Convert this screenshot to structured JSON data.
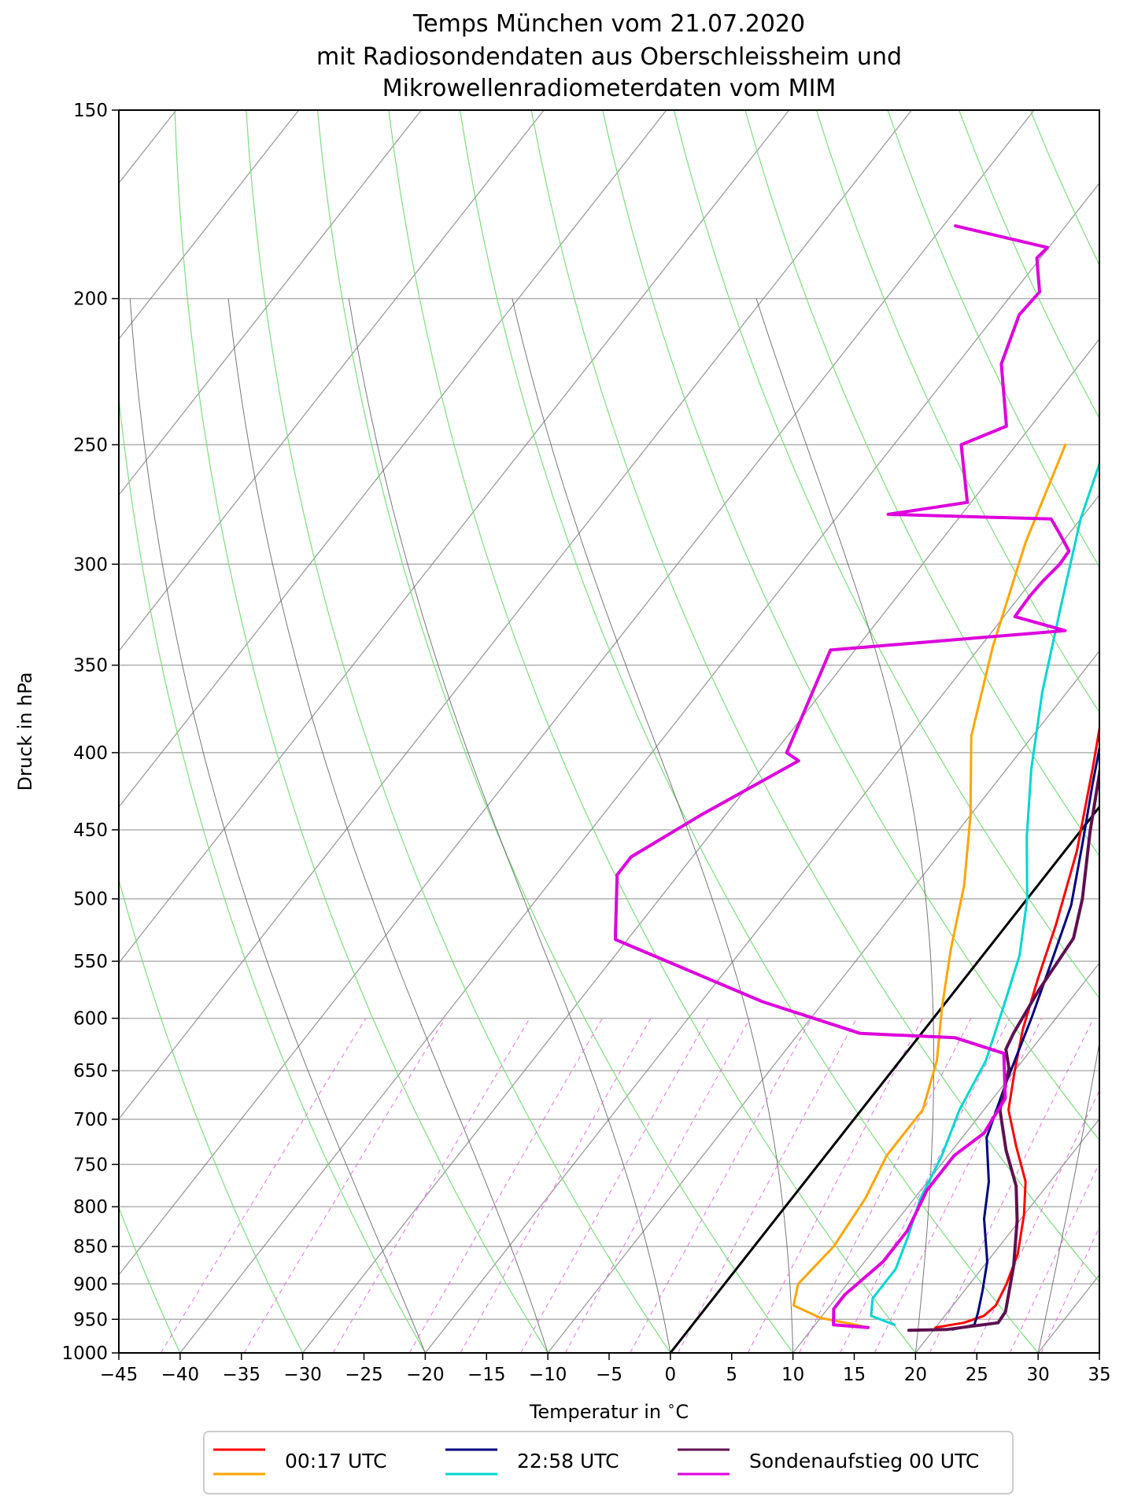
{
  "chart_data": {
    "type": "line",
    "title": "Temps München vom 21.07.2020",
    "subtitle_lines": [
      "mit Radiosondendaten aus Oberschleissheim und",
      "Mikrowellenradiometerdaten vom MIM"
    ],
    "xlabel": "Temperatur in $^\\circ$C",
    "ylabel": "Druck in hPa",
    "xlim": [
      -45,
      35
    ],
    "ylim": [
      1000,
      150
    ],
    "y_scale": "log",
    "skew_t": true,
    "grid": true,
    "x_ticks": [
      -45,
      -40,
      -35,
      -30,
      -25,
      -20,
      -15,
      -10,
      -5,
      0,
      5,
      10,
      15,
      20,
      25,
      30,
      35
    ],
    "x_tick_labels": [
      "−45",
      "−40",
      "−35",
      "−30",
      "−25",
      "−20",
      "−15",
      "−10",
      "−5",
      "0",
      "5",
      "10",
      "15",
      "20",
      "25",
      "30",
      "35"
    ],
    "y_ticks": [
      1000,
      950,
      900,
      850,
      800,
      750,
      700,
      650,
      600,
      550,
      500,
      450,
      400,
      350,
      300,
      250,
      200,
      150
    ],
    "y_tick_labels": [
      "1000",
      "950",
      "900",
      "850",
      "800",
      "750",
      "700",
      "650",
      "600",
      "550",
      "500",
      "450",
      "400",
      "350",
      "300",
      "250",
      "200",
      "150"
    ],
    "legend_position": "bottom",
    "legend": [
      {
        "label": "00:17 UTC",
        "colors": [
          "#ff0000",
          "#ffa500"
        ]
      },
      {
        "label": "22:58 UTC",
        "colors": [
          "#000080",
          "#00d7d0"
        ]
      },
      {
        "label": "Sondenaufstieg 00 UTC",
        "colors": [
          "#5e1050",
          "#dd00dd"
        ]
      }
    ],
    "series": [
      {
        "group": "00:17 UTC",
        "kind": "temperature",
        "color": "#ff0000",
        "width": 3,
        "points": [
          [
            -18.5,
            248
          ],
          [
            -17,
            263
          ],
          [
            -15,
            286
          ],
          [
            -11,
            326
          ],
          [
            -7,
            363
          ],
          [
            -3,
            410
          ],
          [
            1,
            465
          ],
          [
            4,
            520
          ],
          [
            6,
            565
          ],
          [
            8,
            610
          ],
          [
            10,
            650
          ],
          [
            12,
            690
          ],
          [
            15,
            730
          ],
          [
            18,
            770
          ],
          [
            20,
            810
          ],
          [
            22,
            860
          ],
          [
            23,
            900
          ],
          [
            23.5,
            930
          ],
          [
            23.2,
            945
          ],
          [
            22,
            955
          ],
          [
            20,
            962
          ]
        ]
      },
      {
        "group": "00:17 UTC",
        "kind": "dewpoint",
        "color": "#ffa500",
        "width": 3,
        "points": [
          [
            -26,
            250
          ],
          [
            -23,
            290
          ],
          [
            -19,
            340
          ],
          [
            -15,
            390
          ],
          [
            -10,
            440
          ],
          [
            -6,
            490
          ],
          [
            -3,
            540
          ],
          [
            0,
            590
          ],
          [
            3,
            640
          ],
          [
            5,
            690
          ],
          [
            5,
            740
          ],
          [
            6,
            790
          ],
          [
            6.5,
            850
          ],
          [
            6,
            900
          ],
          [
            7,
            930
          ],
          [
            10,
            948
          ],
          [
            13,
            957
          ],
          [
            14.5,
            962
          ]
        ]
      },
      {
        "group": "22:58 UTC",
        "kind": "temperature",
        "color": "#000080",
        "width": 3,
        "points": [
          [
            -16,
            252
          ],
          [
            -14,
            280
          ],
          [
            -11,
            313
          ],
          [
            -8,
            346
          ],
          [
            -5,
            382
          ],
          [
            -2,
            420
          ],
          [
            1,
            460
          ],
          [
            4,
            505
          ],
          [
            6,
            550
          ],
          [
            8,
            600
          ],
          [
            10,
            660
          ],
          [
            12,
            720
          ],
          [
            15,
            770
          ],
          [
            17,
            815
          ],
          [
            20,
            870
          ],
          [
            21.5,
            910
          ],
          [
            22.5,
            940
          ],
          [
            23,
            958
          ],
          [
            21.5,
            965
          ]
        ]
      },
      {
        "group": "22:58 UTC",
        "kind": "dewpoint",
        "color": "#00d7d0",
        "width": 3,
        "points": [
          [
            -22.5,
            252
          ],
          [
            -20,
            280
          ],
          [
            -16,
            320
          ],
          [
            -12,
            365
          ],
          [
            -8,
            410
          ],
          [
            -4,
            455
          ],
          [
            0,
            500
          ],
          [
            3,
            545
          ],
          [
            5,
            590
          ],
          [
            7,
            640
          ],
          [
            8,
            690
          ],
          [
            9.5,
            740
          ],
          [
            10.5,
            790
          ],
          [
            12,
            840
          ],
          [
            13,
            880
          ],
          [
            13,
            920
          ],
          [
            14,
            945
          ],
          [
            16.5,
            958
          ]
        ]
      },
      {
        "group": "Sondenaufstieg 00 UTC",
        "kind": "temperature",
        "color": "#5e1050",
        "width": 4,
        "points": [
          [
            -11.9,
            149
          ],
          [
            -15.8,
            180
          ],
          [
            -20.1,
            200
          ],
          [
            -22.9,
            221
          ],
          [
            -21.2,
            239
          ],
          [
            -16.9,
            269
          ],
          [
            -15.5,
            279
          ],
          [
            -13.4,
            299
          ],
          [
            -10.2,
            325
          ],
          [
            -6.1,
            368
          ],
          [
            -3.2,
            400
          ],
          [
            0.8,
            451
          ],
          [
            4.5,
            500
          ],
          [
            6.3,
            531
          ],
          [
            6.8,
            575
          ],
          [
            7.5,
            614
          ],
          [
            7.9,
            629
          ],
          [
            9.4,
            648
          ],
          [
            11.3,
            690
          ],
          [
            14.4,
            734
          ],
          [
            17.5,
            775
          ],
          [
            19.8,
            817
          ],
          [
            22.4,
            875
          ],
          [
            24.7,
            939
          ],
          [
            24.8,
            955
          ],
          [
            21,
            965
          ],
          [
            18,
            966
          ]
        ]
      },
      {
        "group": "Sondenaufstieg 00 UTC",
        "kind": "dewpoint",
        "color": "#dd00dd",
        "width": 4,
        "points": [
          [
            -49,
            179
          ],
          [
            -40.1,
            185
          ],
          [
            -40.3,
            188
          ],
          [
            -37.9,
            198
          ],
          [
            -38.1,
            205
          ],
          [
            -36.4,
            221
          ],
          [
            -32,
            243
          ],
          [
            -34.5,
            250
          ],
          [
            -30.3,
            273
          ],
          [
            -36,
            278
          ],
          [
            -22.4,
            280
          ],
          [
            -20.6,
            287
          ],
          [
            -18.9,
            294
          ],
          [
            -18.8,
            300
          ],
          [
            -19.1,
            308
          ],
          [
            -19.2,
            315
          ],
          [
            -19.1,
            325
          ],
          [
            -14.1,
            332
          ],
          [
            -32,
            342
          ],
          [
            -29,
            400
          ],
          [
            -27.5,
            405
          ],
          [
            -32,
            440
          ],
          [
            -35,
            469
          ],
          [
            -35,
            482
          ],
          [
            -31,
            532
          ],
          [
            -15,
            585
          ],
          [
            -5,
            614
          ],
          [
            3,
            618
          ],
          [
            8,
            633
          ],
          [
            11,
            678
          ],
          [
            11.5,
            715
          ],
          [
            10.5,
            740
          ],
          [
            10.5,
            780
          ],
          [
            11.5,
            830
          ],
          [
            11.5,
            870
          ],
          [
            10.5,
            915
          ],
          [
            10.5,
            935
          ],
          [
            11.5,
            958
          ],
          [
            14.5,
            962
          ]
        ]
      }
    ]
  }
}
